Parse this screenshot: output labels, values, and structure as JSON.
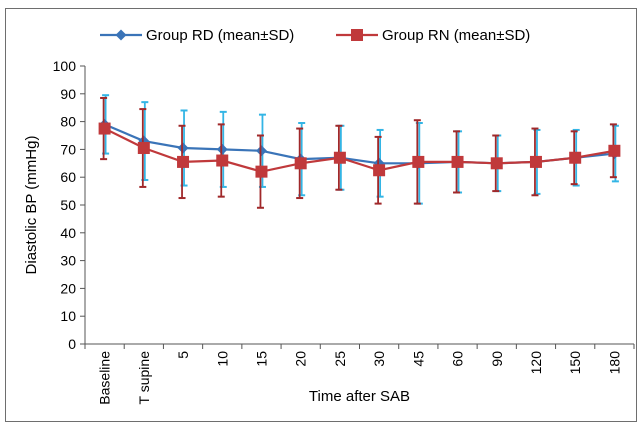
{
  "chart_data": {
    "type": "line",
    "title": "",
    "xlabel": "Time after SAB",
    "ylabel": "Diastolic BP (mmHg)",
    "ylim": [
      0,
      100
    ],
    "yticks": [
      0,
      10,
      20,
      30,
      40,
      50,
      60,
      70,
      80,
      90,
      100
    ],
    "grid": false,
    "legend_position": "top",
    "categories": [
      "Baseline",
      "T supine",
      "5",
      "10",
      "15",
      "20",
      "25",
      "30",
      "45",
      "60",
      "90",
      "120",
      "150",
      "180"
    ],
    "series": [
      {
        "name": "Group RD (mean±SD)",
        "color": "#3a74b8",
        "error_color": "#33b5e5",
        "marker": "diamond",
        "values": [
          79,
          73,
          70.5,
          70,
          69.5,
          66.5,
          67,
          65,
          65,
          65.5,
          65,
          65.5,
          67,
          68.5
        ],
        "sd": [
          10.5,
          14,
          13.5,
          13.5,
          13,
          13,
          11.5,
          12,
          14.5,
          11,
          10,
          11.5,
          10,
          10
        ]
      },
      {
        "name": "Group RN (mean±SD)",
        "color": "#c0393b",
        "error_color": "#a0282a",
        "marker": "square",
        "values": [
          77.5,
          70.5,
          65.5,
          66,
          62,
          65,
          67,
          62.5,
          65.5,
          65.5,
          65,
          65.5,
          67,
          69.5
        ],
        "sd": [
          11,
          14,
          13,
          13,
          13,
          12.5,
          11.5,
          12,
          15,
          11,
          10,
          12,
          9.5,
          9.5
        ]
      }
    ]
  }
}
